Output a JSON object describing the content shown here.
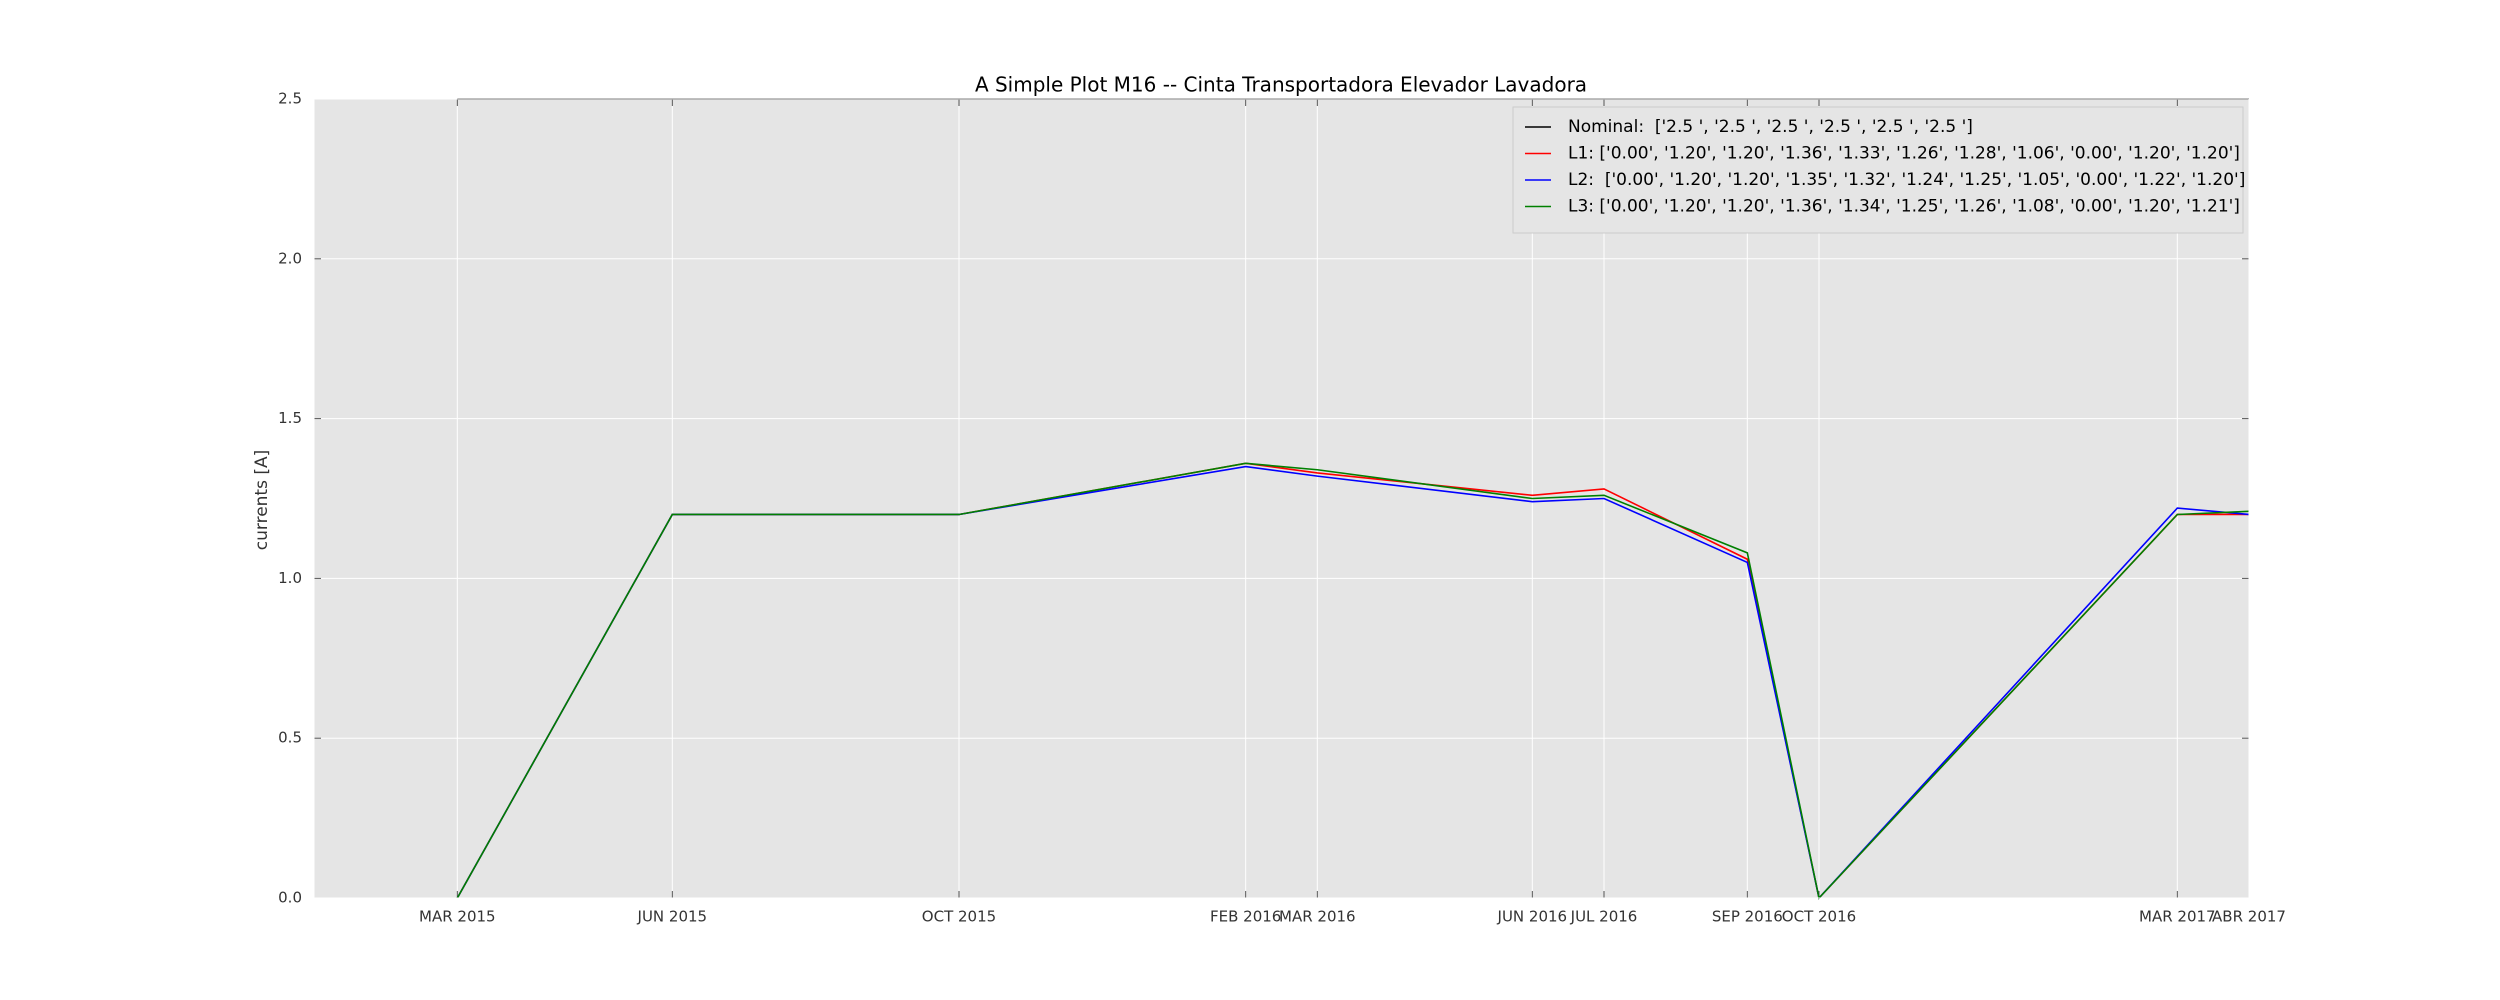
{
  "chart_data": {
    "type": "line",
    "title": "A Simple Plot M16 -- Cinta Transportadora Elevador Lavadora",
    "ylabel": "currents [A]",
    "x": [
      "2015-03",
      "2015-06",
      "2015-10",
      "2016-02",
      "2016-03",
      "2016-06",
      "2016-07",
      "2016-09",
      "2016-10",
      "2017-03",
      "2017-04"
    ],
    "xlim": [
      "2015-01",
      "2017-04"
    ],
    "xticks": [
      {
        "value": "2015-03",
        "label": "MAR 2015"
      },
      {
        "value": "2015-06",
        "label": "JUN 2015"
      },
      {
        "value": "2015-10",
        "label": "OCT 2015"
      },
      {
        "value": "2016-02",
        "label": "FEB 2016"
      },
      {
        "value": "2016-03",
        "label": "MAR 2016"
      },
      {
        "value": "2016-06",
        "label": "JUN 2016"
      },
      {
        "value": "2016-07",
        "label": "JUL 2016"
      },
      {
        "value": "2016-09",
        "label": "SEP 2016"
      },
      {
        "value": "2016-10",
        "label": "OCT 2016"
      },
      {
        "value": "2017-03",
        "label": "MAR 2017"
      },
      {
        "value": "2017-04",
        "label": "ABR 2017"
      }
    ],
    "ylim": [
      0,
      2.5
    ],
    "yticks": [
      {
        "value": 0,
        "label": "0.0"
      },
      0.5,
      {
        "value": 1,
        "label": "1.0"
      },
      1.5,
      {
        "value": 2,
        "label": "2.0"
      },
      2.5
    ],
    "grid": true,
    "legend": "upper right",
    "series": [
      {
        "name": "Nominal:  ['2.5 ', '2.5 ', '2.5 ', '2.5 ', '2.5 ', '2.5 ']",
        "color": "#000000",
        "values": [
          2.5,
          2.5,
          2.5,
          2.5,
          2.5,
          2.5,
          2.5,
          2.5,
          2.5,
          2.5,
          2.5
        ]
      },
      {
        "name": "L1: ['0.00', '1.20', '1.20', '1.36', '1.33', '1.26', '1.28', '1.06', '0.00', '1.20', '1.20']",
        "color": "#ff0000",
        "values": [
          0.0,
          1.2,
          1.2,
          1.36,
          1.33,
          1.26,
          1.28,
          1.06,
          0.0,
          1.2,
          1.2
        ]
      },
      {
        "name": "L2:  ['0.00', '1.20', '1.20', '1.35', '1.32', '1.24', '1.25', '1.05', '0.00', '1.22', '1.20']",
        "color": "#0000ff",
        "values": [
          0.0,
          1.2,
          1.2,
          1.35,
          1.32,
          1.24,
          1.25,
          1.05,
          0.0,
          1.22,
          1.2
        ]
      },
      {
        "name": "L3: ['0.00', '1.20', '1.20', '1.36', '1.34', '1.25', '1.26', '1.08', '0.00', '1.20', '1.21']",
        "color": "#008000",
        "values": [
          0.0,
          1.2,
          1.2,
          1.36,
          1.34,
          1.25,
          1.26,
          1.08,
          0.0,
          1.2,
          1.21
        ]
      }
    ]
  }
}
